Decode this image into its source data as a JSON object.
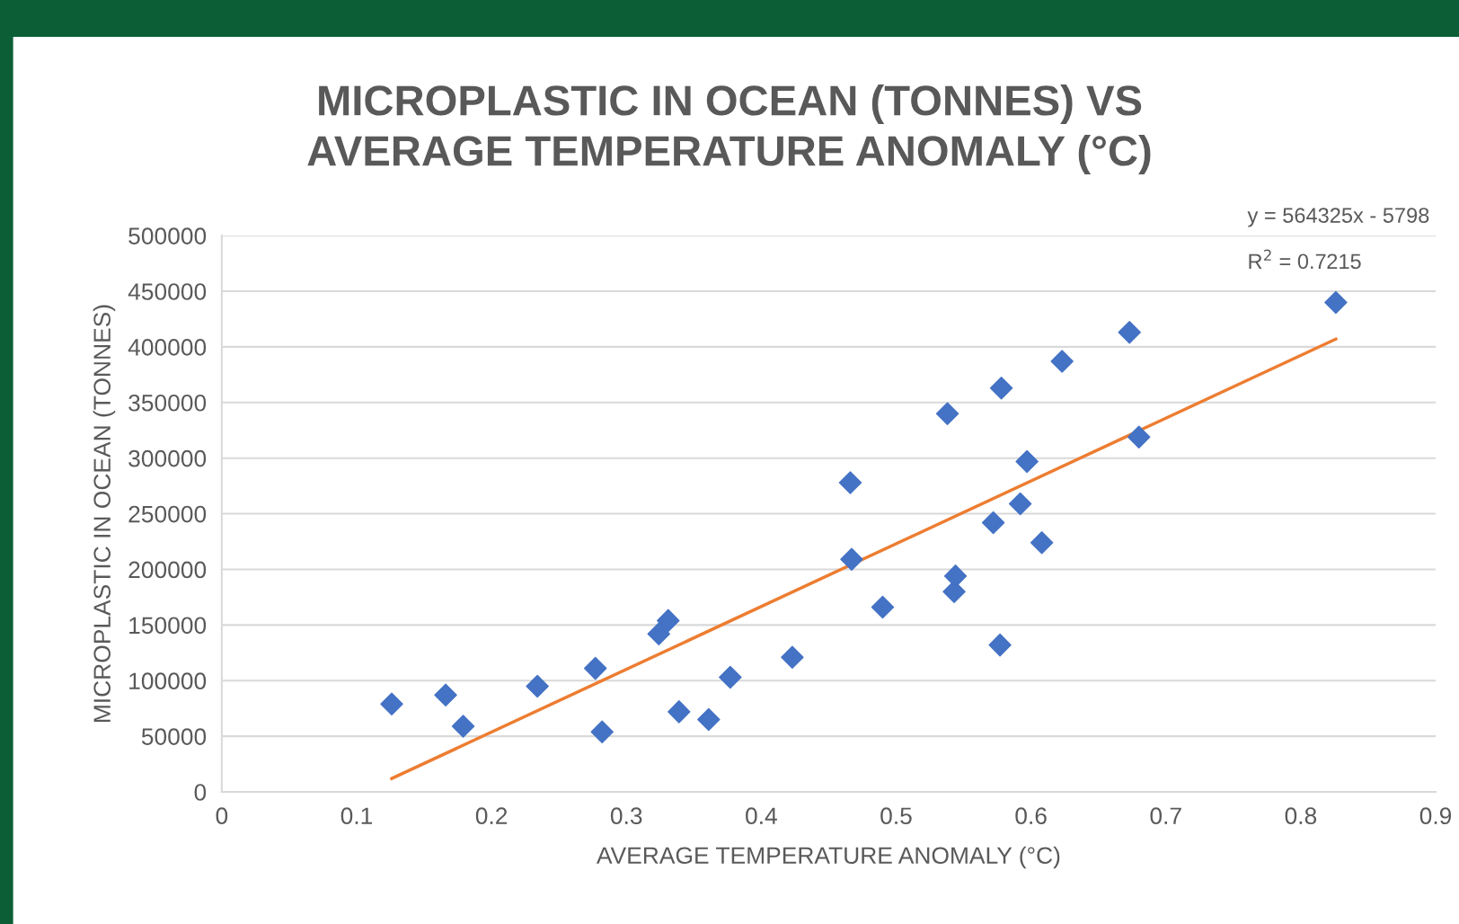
{
  "chart_data": {
    "type": "scatter",
    "title": "MICROPLASTIC IN OCEAN (TONNES) VS\nAVERAGE TEMPERATURE ANOMALY (°C)",
    "xlabel": "AVERAGE TEMPERATURE ANOMALY (°C)",
    "ylabel": "MICROPLASTIC IN OCEAN (TONNES)",
    "series": [
      {
        "color": "#4472c4",
        "marker": "diamond",
        "x": [
          0.126,
          0.166,
          0.179,
          0.234,
          0.277,
          0.282,
          0.324,
          0.331,
          0.339,
          0.361,
          0.377,
          0.423,
          0.466,
          0.467,
          0.49,
          0.538,
          0.543,
          0.544,
          0.572,
          0.577,
          0.578,
          0.592,
          0.597,
          0.608,
          0.623,
          0.673,
          0.68,
          0.826
        ],
        "values": [
          79000,
          87000,
          59000,
          95000,
          111000,
          54000,
          142000,
          154000,
          72000,
          65000,
          103000,
          121000,
          278000,
          209000,
          166000,
          340000,
          180000,
          194000,
          242000,
          132000,
          363000,
          259000,
          297000,
          224000,
          387000,
          413000,
          319000,
          440000
        ]
      },
      {
        "type": "line",
        "color": "#ed7d31",
        "marker": "none",
        "line_style": "solid",
        "x": [
          0.126,
          0.826
        ],
        "values": [
          12000,
          407000
        ]
      }
    ],
    "annotations": [
      "y = 564325x - 5798",
      "R$^{2}$ = 0.7215"
    ],
    "xlim": [
      0,
      0.9
    ],
    "xticks": [
      0,
      0.1,
      0.2,
      0.3,
      0.4,
      0.5,
      0.6,
      0.7,
      0.8,
      0.9
    ],
    "ylim": [
      0,
      500000
    ],
    "yticks": [
      0,
      50000,
      100000,
      150000,
      200000,
      250000,
      300000,
      350000,
      400000,
      450000,
      500000
    ],
    "grid": "y",
    "legend": false
  }
}
